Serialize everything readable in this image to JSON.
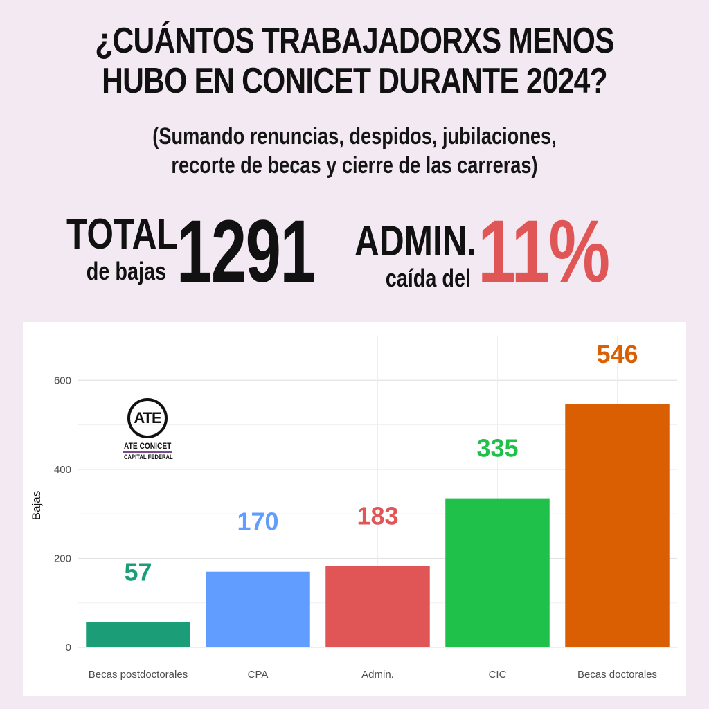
{
  "header": {
    "title_line1": "¿CUÁNTOS TRABAJADORXS MENOS",
    "title_line2": "HUBO EN  CONICET DURANTE 2024?",
    "subtitle_line1": "(Sumando renuncias, despidos, jubilaciones,",
    "subtitle_line2": "recorte de becas y cierre de las carreras)"
  },
  "stats": {
    "total_label": "TOTAL",
    "total_sublabel": "de bajas",
    "total_value": "1291",
    "admin_label": "ADMIN.",
    "admin_sublabel": "caída del",
    "admin_value": "11%",
    "admin_color": "#e05556"
  },
  "logo": {
    "initials": "ATE",
    "name": "ATE CONICET",
    "sub": "CAPITAL FEDERAL",
    "icon": "ate-logo-icon"
  },
  "chart_data": {
    "type": "bar",
    "categories": [
      "Becas postdoctorales",
      "CPA",
      "Admin.",
      "CIC",
      "Becas doctorales"
    ],
    "values": [
      57,
      170,
      183,
      335,
      546
    ],
    "data_labels": [
      "57",
      "170",
      "183",
      "335",
      "546"
    ],
    "colors": [
      "#1b9e77",
      "#619cff",
      "#e05556",
      "#1fc14a",
      "#d95f02"
    ],
    "label_colors": [
      "#1b9e77",
      "#619cff",
      "#e05556",
      "#1fc14a",
      "#d95f02"
    ],
    "ylabel": "Bajas",
    "xlabel": "",
    "ylim": [
      0,
      700
    ],
    "yticks": [
      0,
      200,
      400,
      600
    ],
    "grid": true,
    "legend": "none"
  }
}
